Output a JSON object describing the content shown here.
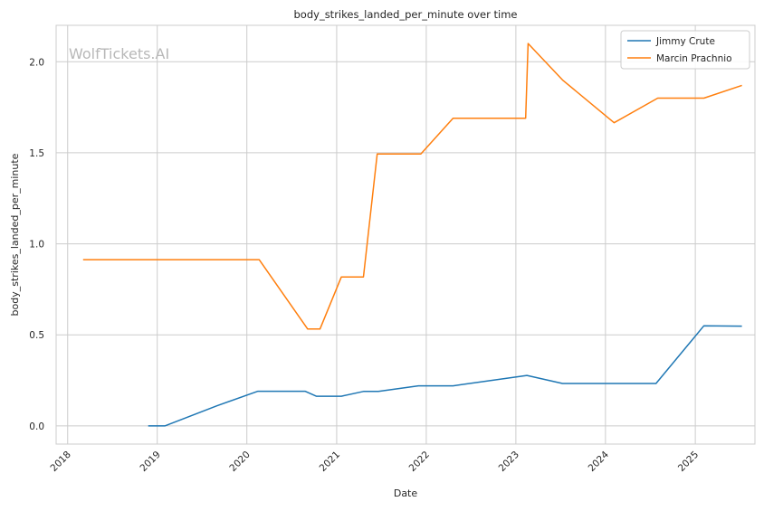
{
  "chart_data": {
    "type": "line",
    "title": "body_strikes_landed_per_minute over time",
    "xlabel": "Date",
    "ylabel": "body_strikes_landed_per_minute",
    "watermark": "WolfTickets.AI",
    "xlim": [
      "2017-11-15",
      "2025-09-01"
    ],
    "ylim": [
      -0.1,
      2.2
    ],
    "x_ticks": [
      "2018",
      "2019",
      "2020",
      "2021",
      "2022",
      "2023",
      "2024",
      "2025"
    ],
    "y_ticks": [
      "0.0",
      "0.5",
      "1.0",
      "1.5",
      "2.0"
    ],
    "grid": true,
    "legend_position": "top-right",
    "series": [
      {
        "name": "Jimmy Crute",
        "color": "#1f77b4",
        "points": [
          [
            "2018-11-25",
            0.0
          ],
          [
            "2019-02-01",
            0.0
          ],
          [
            "2019-09-01",
            0.11
          ],
          [
            "2020-02-15",
            0.19
          ],
          [
            "2020-08-25",
            0.19
          ],
          [
            "2020-10-10",
            0.163
          ],
          [
            "2021-01-20",
            0.163
          ],
          [
            "2021-04-20",
            0.189
          ],
          [
            "2021-06-20",
            0.189
          ],
          [
            "2021-11-30",
            0.22
          ],
          [
            "2022-04-20",
            0.22
          ],
          [
            "2023-02-15",
            0.277
          ],
          [
            "2023-07-10",
            0.233
          ],
          [
            "2024-07-25",
            0.233
          ],
          [
            "2025-02-05",
            0.55
          ],
          [
            "2025-07-10",
            0.548
          ]
        ]
      },
      {
        "name": "Marcin Prachnio",
        "color": "#ff7f0e",
        "points": [
          [
            "2018-03-05",
            0.913
          ],
          [
            "2020-02-20",
            0.913
          ],
          [
            "2020-09-05",
            0.532
          ],
          [
            "2020-10-25",
            0.532
          ],
          [
            "2021-01-20",
            0.818
          ],
          [
            "2021-04-20",
            0.818
          ],
          [
            "2021-06-15",
            1.493
          ],
          [
            "2021-12-10",
            1.493
          ],
          [
            "2022-04-20",
            1.69
          ],
          [
            "2023-02-10",
            1.69
          ],
          [
            "2023-02-20",
            2.1
          ],
          [
            "2023-07-10",
            1.9
          ],
          [
            "2024-02-05",
            1.665
          ],
          [
            "2024-08-01",
            1.8
          ],
          [
            "2025-02-05",
            1.8
          ],
          [
            "2025-07-10",
            1.87
          ]
        ]
      }
    ]
  }
}
